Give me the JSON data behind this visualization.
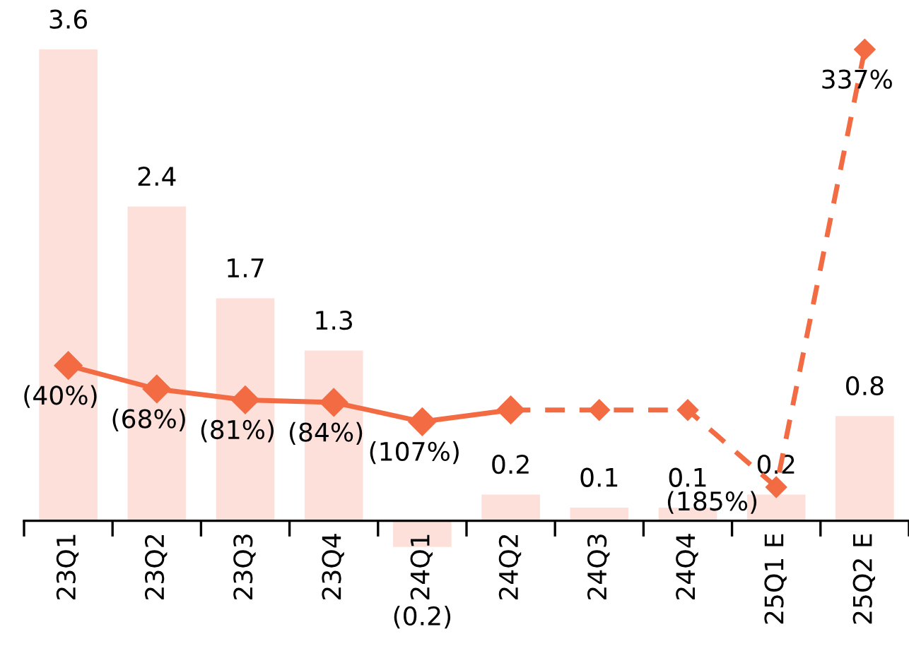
{
  "chart_data": {
    "type": "bar",
    "categories": [
      "23Q1",
      "23Q2",
      "23Q3",
      "23Q4",
      "24Q1",
      "24Q2",
      "24Q3",
      "24Q4",
      "25Q1 E",
      "25Q2 E"
    ],
    "series": [
      {
        "color": "#fde0da",
        "values": [
          3.6,
          2.4,
          1.7,
          1.3,
          -0.2,
          0.2,
          0.1,
          0.1,
          0.2,
          0.8
        ],
        "value_labels": [
          "3.6",
          "2.4",
          "1.7",
          "1.3",
          "(0.2)",
          "0.2",
          "0.1",
          "0.1",
          "0.2",
          "0.8"
        ]
      },
      {
        "type": "line",
        "axis": "y2",
        "color": "#f26b43",
        "line_style": "solid",
        "marker": "diamond",
        "values": [
          -40,
          -68,
          -81,
          -84,
          -107,
          -93,
          null,
          null,
          null,
          null
        ],
        "value_labels": [
          "(40%)",
          "(68%)",
          "(81%)",
          "(84%)",
          "(107%)",
          null,
          null,
          null,
          null,
          null
        ]
      },
      {
        "type": "line",
        "axis": "y2",
        "color": "#f26b43",
        "line_style": "dashed",
        "marker": "diamond",
        "values": [
          null,
          null,
          null,
          null,
          null,
          -93,
          -93,
          -93,
          -185,
          337
        ],
        "value_labels": [
          null,
          null,
          null,
          null,
          null,
          null,
          null,
          null,
          "(185%)",
          "337%"
        ]
      }
    ],
    "tick_labels": "x",
    "grid": false,
    "legend": false
  }
}
